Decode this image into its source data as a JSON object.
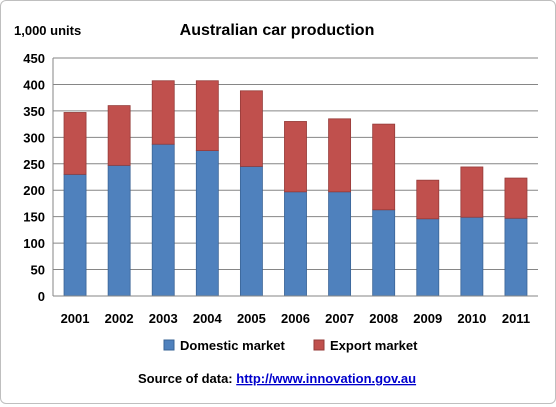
{
  "chart_data": {
    "type": "bar",
    "stacked": true,
    "title": "Australian car production",
    "ylabel": "1,000 units",
    "xlabel": "",
    "categories": [
      "2001",
      "2002",
      "2003",
      "2004",
      "2005",
      "2006",
      "2007",
      "2008",
      "2009",
      "2010",
      "2011"
    ],
    "series": [
      {
        "name": "Domestic market",
        "color": "#4f81bd",
        "values": [
          230,
          247,
          287,
          275,
          245,
          197,
          197,
          163,
          146,
          149,
          147
        ]
      },
      {
        "name": "Export market",
        "color": "#c0504d",
        "values": [
          117,
          113,
          120,
          132,
          143,
          133,
          138,
          162,
          73,
          95,
          76
        ]
      }
    ],
    "ylim": [
      0,
      450
    ],
    "yticks": [
      "0",
      "50",
      "100",
      "150",
      "200",
      "250",
      "300",
      "350",
      "400",
      "450"
    ],
    "grid": true,
    "legend_position": "bottom"
  },
  "source": {
    "label": "Source of data: ",
    "url_text": "http://www.innovation.gov.au"
  }
}
